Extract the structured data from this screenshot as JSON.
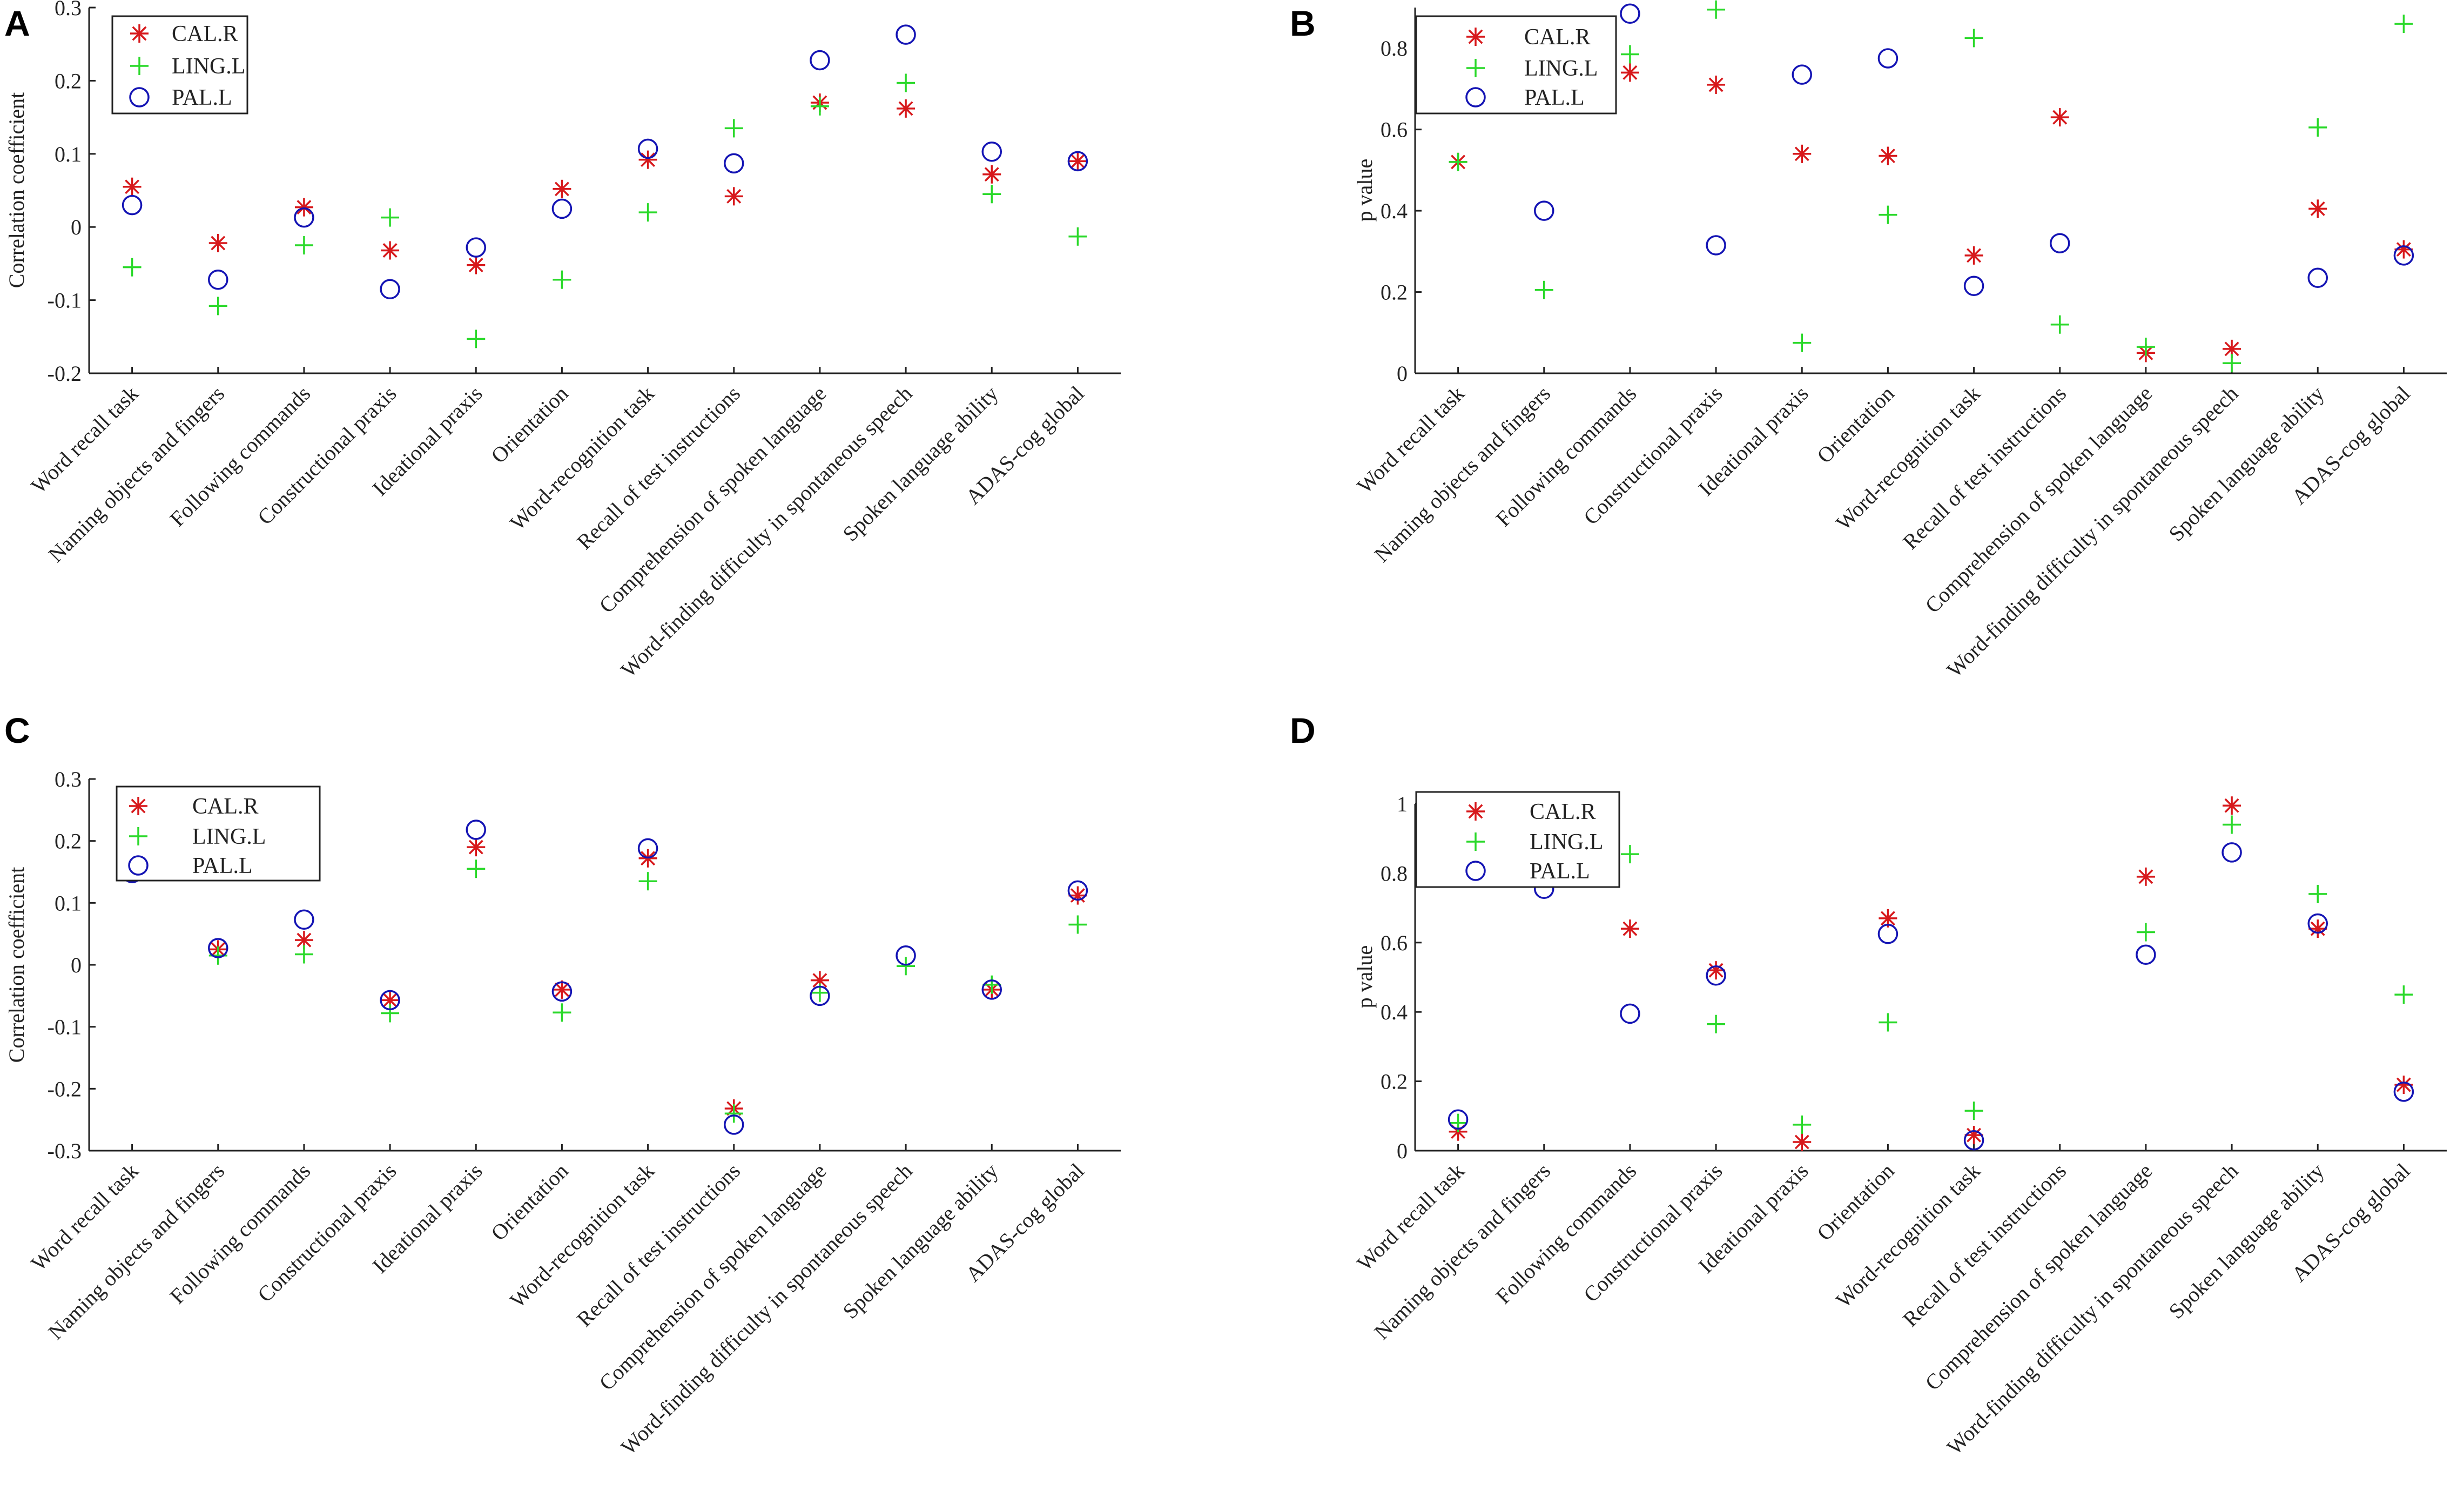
{
  "colors": {
    "CAL.R": "#d7191c",
    "LING.L": "#2bd92b",
    "PAL.L": "#1414b4",
    "axis": "#222222"
  },
  "marker_shapes": {
    "CAL.R": "asterisk",
    "LING.L": "plus",
    "PAL.L": "circle"
  },
  "chart_data": [
    {
      "panel": "A",
      "type": "scatter",
      "ylabel": "Correlation coefficient",
      "ylim": [
        -0.2,
        0.3
      ],
      "yticks": [
        -0.2,
        -0.1,
        0,
        0.1,
        0.2,
        0.3
      ],
      "ytick_labels": [
        "-0.2",
        "-0.1",
        "0",
        "0.1",
        "0.2",
        "0.3"
      ],
      "legend": [
        "CAL.R",
        "LING.L",
        "PAL.L"
      ],
      "legend_position": "top-left",
      "categories": [
        "Word recall task",
        "Naming objects and fingers",
        "Following commands",
        "Constructional praxis",
        "Ideational praxis",
        "Orientation",
        "Word-recognition task",
        "Recall of test instructions",
        "Comprehension of spoken language",
        "Word-finding difficulty in spontaneous speech",
        "Spoken language ability",
        "ADAS-cog global"
      ],
      "series": [
        {
          "name": "CAL.R",
          "values": [
            0.055,
            -0.022,
            0.027,
            -0.032,
            -0.052,
            0.052,
            0.092,
            0.042,
            0.17,
            0.162,
            0.072,
            0.09
          ]
        },
        {
          "name": "LING.L",
          "values": [
            -0.055,
            -0.108,
            -0.025,
            0.013,
            -0.153,
            -0.072,
            0.02,
            0.135,
            0.165,
            0.197,
            0.045,
            -0.013
          ]
        },
        {
          "name": "PAL.L",
          "values": [
            0.03,
            -0.072,
            0.013,
            -0.085,
            -0.028,
            0.025,
            0.107,
            0.087,
            0.228,
            0.263,
            0.103,
            0.09
          ]
        }
      ]
    },
    {
      "panel": "B",
      "type": "scatter",
      "ylabel": "p value",
      "ylim": [
        0,
        0.9
      ],
      "yticks": [
        0,
        0.2,
        0.4,
        0.6,
        0.8
      ],
      "ytick_labels": [
        "0",
        "0.2",
        "0.4",
        "0.6",
        "0.8"
      ],
      "legend": [
        "CAL.R",
        "LING.L",
        "PAL.L"
      ],
      "legend_position": "top-left",
      "categories": [
        "Word recall task",
        "Naming objects and fingers",
        "Following commands",
        "Constructional praxis",
        "Ideational praxis",
        "Orientation",
        "Word-recognition task",
        "Recall of test instructions",
        "Comprehension of spoken language",
        "Word-finding difficulty in spontaneous speech",
        "Spoken language ability",
        "ADAS-cog global"
      ],
      "series": [
        {
          "name": "CAL.R",
          "values": [
            0.52,
            null,
            0.74,
            0.71,
            0.54,
            0.535,
            0.29,
            0.63,
            0.05,
            0.06,
            0.405,
            0.305
          ]
        },
        {
          "name": "LING.L",
          "values": [
            0.52,
            0.205,
            0.785,
            0.895,
            0.075,
            0.39,
            0.825,
            0.12,
            0.065,
            0.025,
            0.605,
            0.86
          ]
        },
        {
          "name": "PAL.L",
          "values": [
            null,
            0.4,
            0.885,
            0.315,
            0.735,
            0.775,
            0.215,
            0.32,
            null,
            null,
            0.235,
            0.29
          ]
        }
      ]
    },
    {
      "panel": "C",
      "type": "scatter",
      "ylabel": "Correlation coefficient",
      "ylim": [
        -0.3,
        0.3
      ],
      "yticks": [
        -0.3,
        -0.2,
        -0.1,
        0,
        0.1,
        0.2,
        0.3
      ],
      "ytick_labels": [
        "-0.3",
        "-0.2",
        "-0.1",
        "0",
        "0.1",
        "0.2",
        "0.3"
      ],
      "legend": [
        "CAL.R",
        "LING.L",
        "PAL.L"
      ],
      "legend_position": "top-left",
      "categories": [
        "Word recall task",
        "Naming objects and fingers",
        "Following commands",
        "Constructional praxis",
        "Ideational praxis",
        "Orientation",
        "Word-recognition task",
        "Recall of test instructions",
        "Comprehension of spoken language",
        "Word-finding difficulty in spontaneous speech",
        "Spoken language ability",
        "ADAS-cog global"
      ],
      "series": [
        {
          "name": "CAL.R",
          "values": [
            null,
            0.025,
            0.04,
            -0.057,
            0.19,
            -0.04,
            0.172,
            -0.232,
            -0.025,
            null,
            -0.04,
            0.112
          ]
        },
        {
          "name": "LING.L",
          "values": [
            0.148,
            0.015,
            0.017,
            -0.078,
            0.155,
            -0.077,
            0.135,
            -0.24,
            -0.045,
            -0.002,
            -0.032,
            0.065
          ]
        },
        {
          "name": "PAL.L",
          "values": [
            0.148,
            0.027,
            0.073,
            -0.057,
            0.218,
            -0.043,
            0.188,
            -0.258,
            -0.05,
            0.015,
            -0.04,
            0.12
          ]
        }
      ]
    },
    {
      "panel": "D",
      "type": "scatter",
      "ylabel": "p value",
      "ylim": [
        0,
        1
      ],
      "yticks": [
        0,
        0.2,
        0.4,
        0.6,
        0.8,
        1
      ],
      "ytick_labels": [
        "0",
        "0.2",
        "0.4",
        "0.6",
        "0.8",
        "1"
      ],
      "legend": [
        "CAL.R",
        "LING.L",
        "PAL.L"
      ],
      "legend_position": "top-left",
      "categories": [
        "Word recall task",
        "Naming objects and fingers",
        "Following commands",
        "Constructional praxis",
        "Ideational praxis",
        "Orientation",
        "Word-recognition task",
        "Recall of test instructions",
        "Comprehension of spoken language",
        "Word-finding difficulty in spontaneous speech",
        "Spoken language ability",
        "ADAS-cog global"
      ],
      "series": [
        {
          "name": "CAL.R",
          "values": [
            0.055,
            null,
            0.64,
            0.52,
            0.025,
            0.67,
            0.045,
            null,
            0.79,
            0.995,
            0.64,
            0.19
          ]
        },
        {
          "name": "LING.L",
          "values": [
            0.08,
            null,
            0.855,
            0.365,
            0.075,
            0.37,
            0.115,
            null,
            0.63,
            0.94,
            0.74,
            0.45
          ]
        },
        {
          "name": "PAL.L",
          "values": [
            0.09,
            0.755,
            0.395,
            0.505,
            null,
            0.625,
            0.03,
            null,
            0.565,
            0.86,
            0.655,
            0.17
          ]
        }
      ]
    }
  ]
}
